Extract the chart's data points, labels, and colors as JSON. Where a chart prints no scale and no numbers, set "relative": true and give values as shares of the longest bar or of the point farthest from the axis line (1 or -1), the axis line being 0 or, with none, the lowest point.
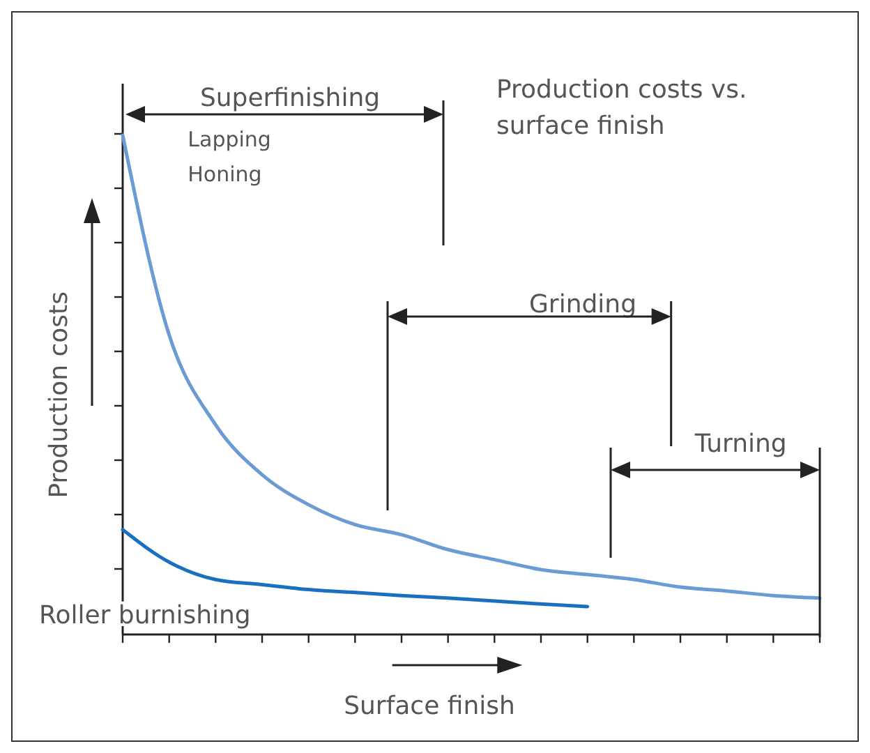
{
  "chart_data": {
    "type": "line",
    "title": "Production costs vs. surface finish",
    "xlabel": "Surface finish",
    "ylabel": "Production costs",
    "relative": true,
    "categories": [
      null,
      null,
      null,
      null,
      null,
      null,
      null,
      null,
      null,
      null,
      null,
      null,
      null,
      null,
      null,
      null
    ],
    "series": [
      {
        "color": "#6a9bd4",
        "values": [
          1.0,
          0.6,
          0.42,
          0.32,
          0.26,
          0.22,
          0.2,
          0.17,
          0.15,
          0.13,
          0.12,
          0.11,
          0.095,
          0.087,
          0.078,
          0.073
        ]
      },
      {
        "name": "Roller burnishing",
        "color": "#1a6fc0",
        "values": [
          0.21,
          0.145,
          0.11,
          0.1,
          0.09,
          0.084,
          0.078,
          0.073,
          0.067,
          0.061,
          0.056,
          null,
          null,
          null,
          null,
          null
        ]
      }
    ],
    "annotations": [
      "Superfinishing",
      "Lapping",
      "Honing",
      "Grinding",
      "Turning"
    ],
    "line_style": "solid"
  }
}
